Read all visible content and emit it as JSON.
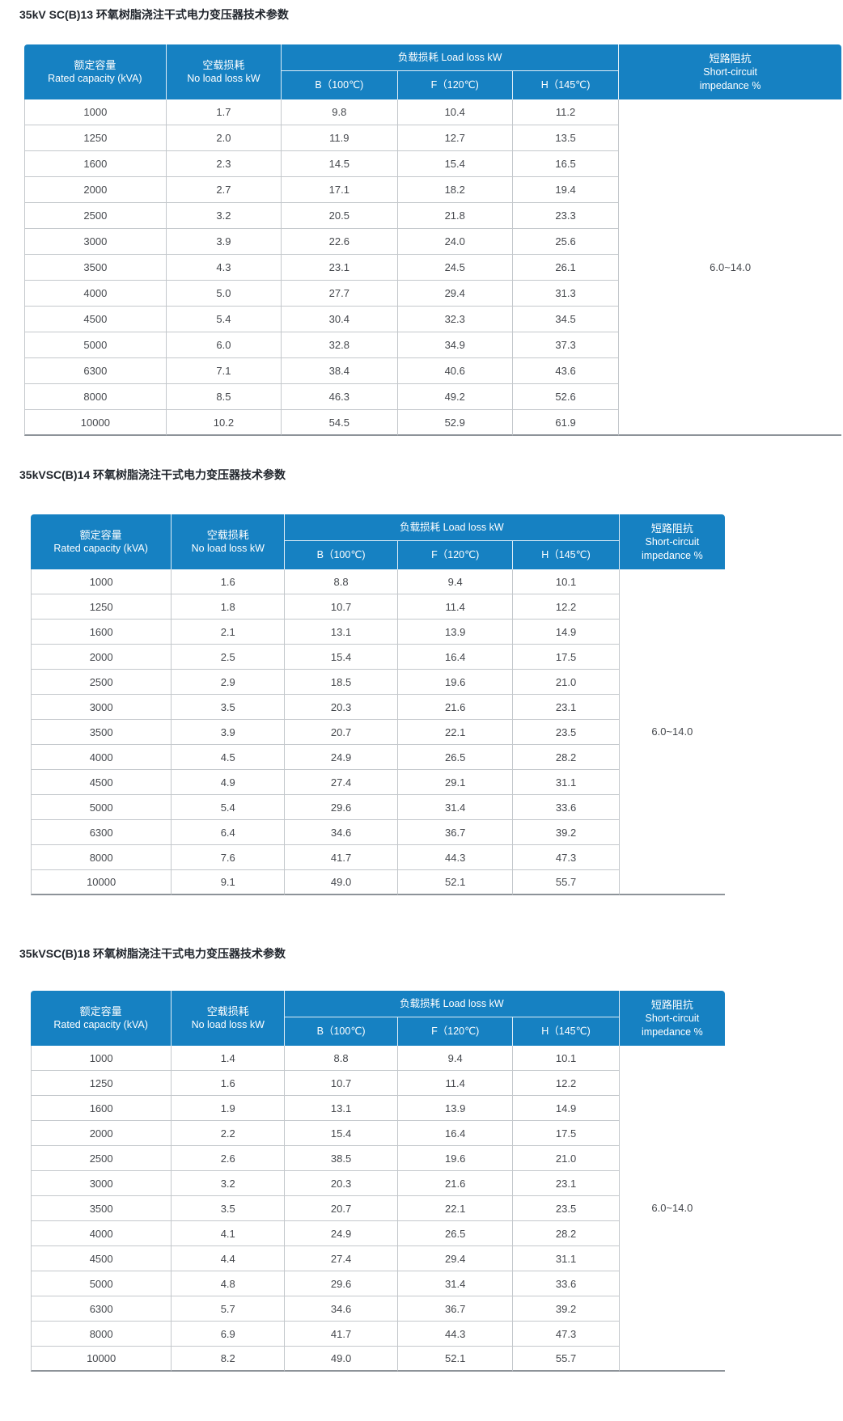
{
  "colors": {
    "header_bg": "#1681c2",
    "row_line": "#c4c8cc",
    "bottom_line": "#8d9399",
    "cell_text": "#45484d",
    "title_text": "#20252c"
  },
  "columns": {
    "rated_zh": "额定容量",
    "rated_en": "Rated capacity (kVA)",
    "no_load_zh": "空载损耗",
    "no_load_en": "No load loss kW",
    "load_loss": "负载损耗 Load loss kW",
    "b": "B（100℃)",
    "f": "F（120℃)",
    "h": "H（145℃)",
    "imp_zh": "短路阻抗",
    "imp_en1": "Short-circuit",
    "imp_en2": "impedance %"
  },
  "tables": [
    {
      "title": "35kV SC(B)13 环氧树脂浇注干式电力变压器技术参数",
      "impedance": "6.0~14.0",
      "rows": [
        [
          "1000",
          "1.7",
          "9.8",
          "10.4",
          "11.2"
        ],
        [
          "1250",
          "2.0",
          "11.9",
          "12.7",
          "13.5"
        ],
        [
          "1600",
          "2.3",
          "14.5",
          "15.4",
          "16.5"
        ],
        [
          "2000",
          "2.7",
          "17.1",
          "18.2",
          "19.4"
        ],
        [
          "2500",
          "3.2",
          "20.5",
          "21.8",
          "23.3"
        ],
        [
          "3000",
          "3.9",
          "22.6",
          "24.0",
          "25.6"
        ],
        [
          "3500",
          "4.3",
          "23.1",
          "24.5",
          "26.1"
        ],
        [
          "4000",
          "5.0",
          "27.7",
          "29.4",
          "31.3"
        ],
        [
          "4500",
          "5.4",
          "30.4",
          "32.3",
          "34.5"
        ],
        [
          "5000",
          "6.0",
          "32.8",
          "34.9",
          "37.3"
        ],
        [
          "6300",
          "7.1",
          "38.4",
          "40.6",
          "43.6"
        ],
        [
          "8000",
          "8.5",
          "46.3",
          "49.2",
          "52.6"
        ],
        [
          "10000",
          "10.2",
          "54.5",
          "52.9",
          "61.9"
        ]
      ]
    },
    {
      "title": "35kVSC(B)14 环氧树脂浇注干式电力变压器技术参数",
      "impedance": "6.0~14.0",
      "rows": [
        [
          "1000",
          "1.6",
          "8.8",
          "9.4",
          "10.1"
        ],
        [
          "1250",
          "1.8",
          "10.7",
          "11.4",
          "12.2"
        ],
        [
          "1600",
          "2.1",
          "13.1",
          "13.9",
          "14.9"
        ],
        [
          "2000",
          "2.5",
          "15.4",
          "16.4",
          "17.5"
        ],
        [
          "2500",
          "2.9",
          "18.5",
          "19.6",
          "21.0"
        ],
        [
          "3000",
          "3.5",
          "20.3",
          "21.6",
          "23.1"
        ],
        [
          "3500",
          "3.9",
          "20.7",
          "22.1",
          "23.5"
        ],
        [
          "4000",
          "4.5",
          "24.9",
          "26.5",
          "28.2"
        ],
        [
          "4500",
          "4.9",
          "27.4",
          "29.1",
          "31.1"
        ],
        [
          "5000",
          "5.4",
          "29.6",
          "31.4",
          "33.6"
        ],
        [
          "6300",
          "6.4",
          "34.6",
          "36.7",
          "39.2"
        ],
        [
          "8000",
          "7.6",
          "41.7",
          "44.3",
          "47.3"
        ],
        [
          "10000",
          "9.1",
          "49.0",
          "52.1",
          "55.7"
        ]
      ]
    },
    {
      "title": "35kVSC(B)18 环氧树脂浇注干式电力变压器技术参数",
      "impedance": "6.0~14.0",
      "rows": [
        [
          "1000",
          "1.4",
          "8.8",
          "9.4",
          "10.1"
        ],
        [
          "1250",
          "1.6",
          "10.7",
          "11.4",
          "12.2"
        ],
        [
          "1600",
          "1.9",
          "13.1",
          "13.9",
          "14.9"
        ],
        [
          "2000",
          "2.2",
          "15.4",
          "16.4",
          "17.5"
        ],
        [
          "2500",
          "2.6",
          "38.5",
          "19.6",
          "21.0"
        ],
        [
          "3000",
          "3.2",
          "20.3",
          "21.6",
          "23.1"
        ],
        [
          "3500",
          "3.5",
          "20.7",
          "22.1",
          "23.5"
        ],
        [
          "4000",
          "4.1",
          "24.9",
          "26.5",
          "28.2"
        ],
        [
          "4500",
          "4.4",
          "27.4",
          "29.4",
          "31.1"
        ],
        [
          "5000",
          "4.8",
          "29.6",
          "31.4",
          "33.6"
        ],
        [
          "6300",
          "5.7",
          "34.6",
          "36.7",
          "39.2"
        ],
        [
          "8000",
          "6.9",
          "41.7",
          "44.3",
          "47.3"
        ],
        [
          "10000",
          "8.2",
          "49.0",
          "52.1",
          "55.7"
        ]
      ]
    }
  ]
}
